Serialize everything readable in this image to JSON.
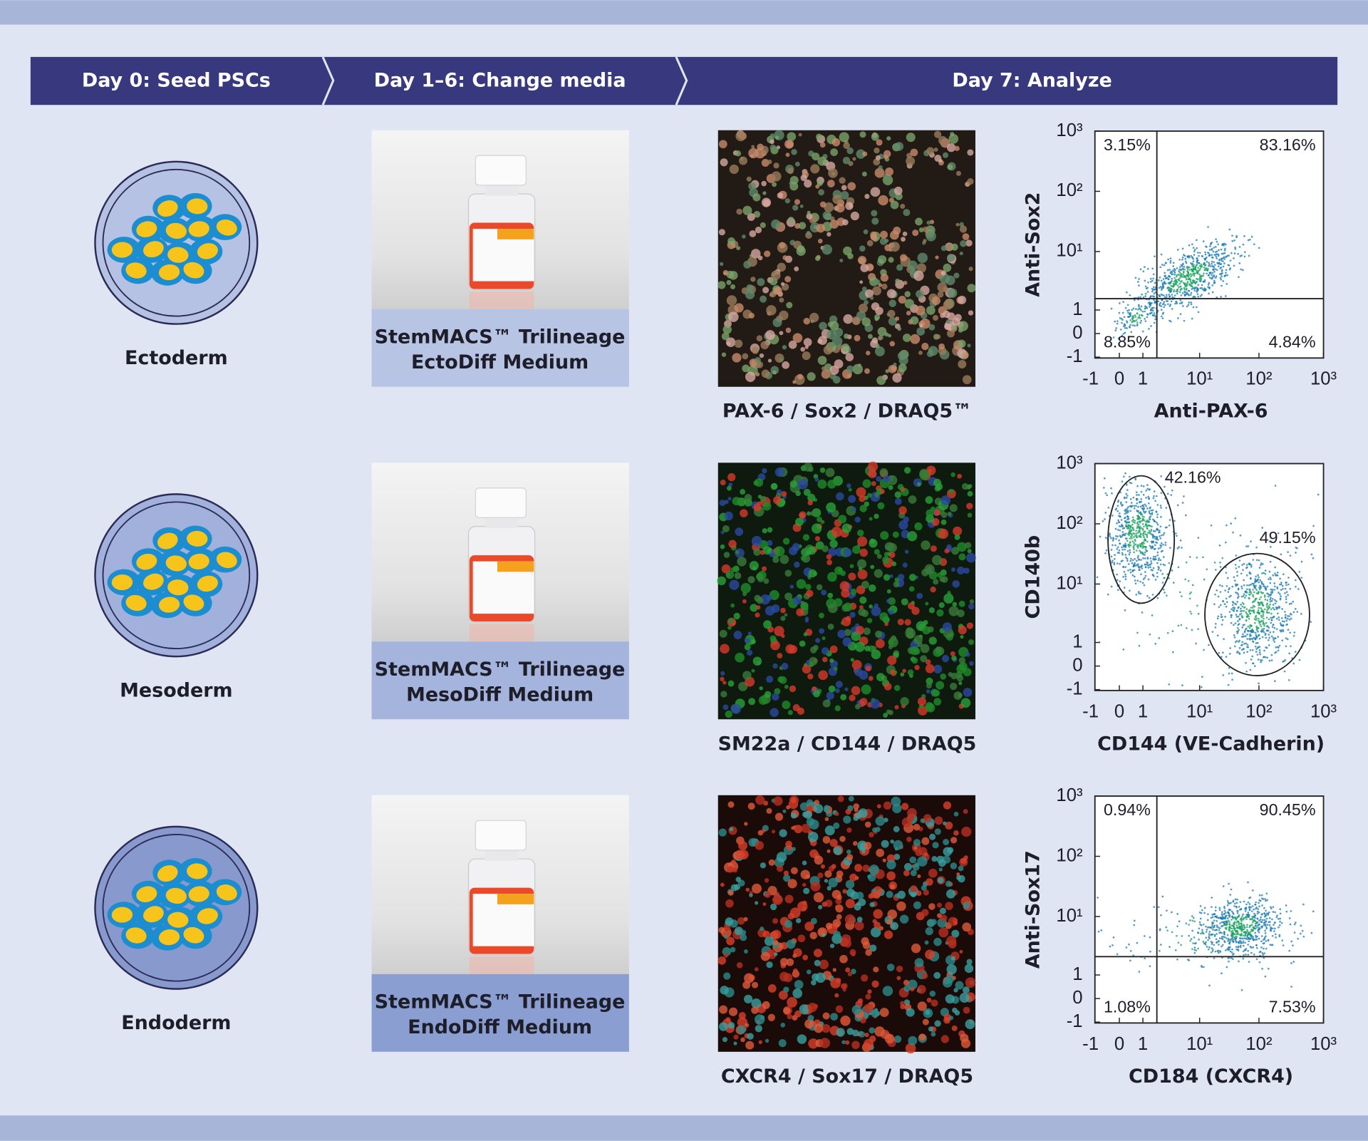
{
  "header": {
    "steps": [
      "Day 0: Seed PSCs",
      "Day 1–6: Change media",
      "Day 7: Analyze"
    ]
  },
  "rows": [
    {
      "layer": "Ectoderm",
      "medium": [
        "StemMACS™ Trilineage",
        "EctoDiff Medium"
      ],
      "stain": "PAX-6 / Sox2 / DRAQ5™",
      "plot": {
        "x_label": "Anti-PAX-6",
        "y_label": "Anti-Sox2",
        "x_ticks": [
          "-1",
          "0",
          "1",
          "10¹",
          "10²",
          "10³"
        ],
        "y_ticks": [
          "10³",
          "10²",
          "10¹",
          "1",
          "0",
          "-1"
        ],
        "gates": [
          "3.15%",
          "83.16%",
          "8.85%",
          "4.84%"
        ]
      }
    },
    {
      "layer": "Mesoderm",
      "medium": [
        "StemMACS™ Trilineage",
        "MesoDiff Medium"
      ],
      "stain": "SM22a / CD144 / DRAQ5",
      "plot": {
        "x_label": "CD144 (VE-Cadherin)",
        "y_label": "CD140b",
        "x_ticks": [
          "-1",
          "0",
          "1",
          "10¹",
          "10²",
          "10³"
        ],
        "y_ticks": [
          "10³",
          "10²",
          "10¹",
          "1",
          "0",
          "-1"
        ],
        "gates": [
          "42.16%",
          "49.15%"
        ]
      }
    },
    {
      "layer": "Endoderm",
      "medium": [
        "StemMACS™ Trilineage",
        "EndoDiff Medium"
      ],
      "stain": "CXCR4 / Sox17 / DRAQ5",
      "plot": {
        "x_label": "CD184 (CXCR4)",
        "y_label": "Anti-Sox17",
        "x_ticks": [
          "-1",
          "0",
          "1",
          "10¹",
          "10²",
          "10³"
        ],
        "y_ticks": [
          "10³",
          "10²",
          "10¹",
          "1",
          "0",
          "-1"
        ],
        "gates": [
          "0.94%",
          "90.45%",
          "1.08%",
          "7.53%"
        ]
      }
    }
  ]
}
